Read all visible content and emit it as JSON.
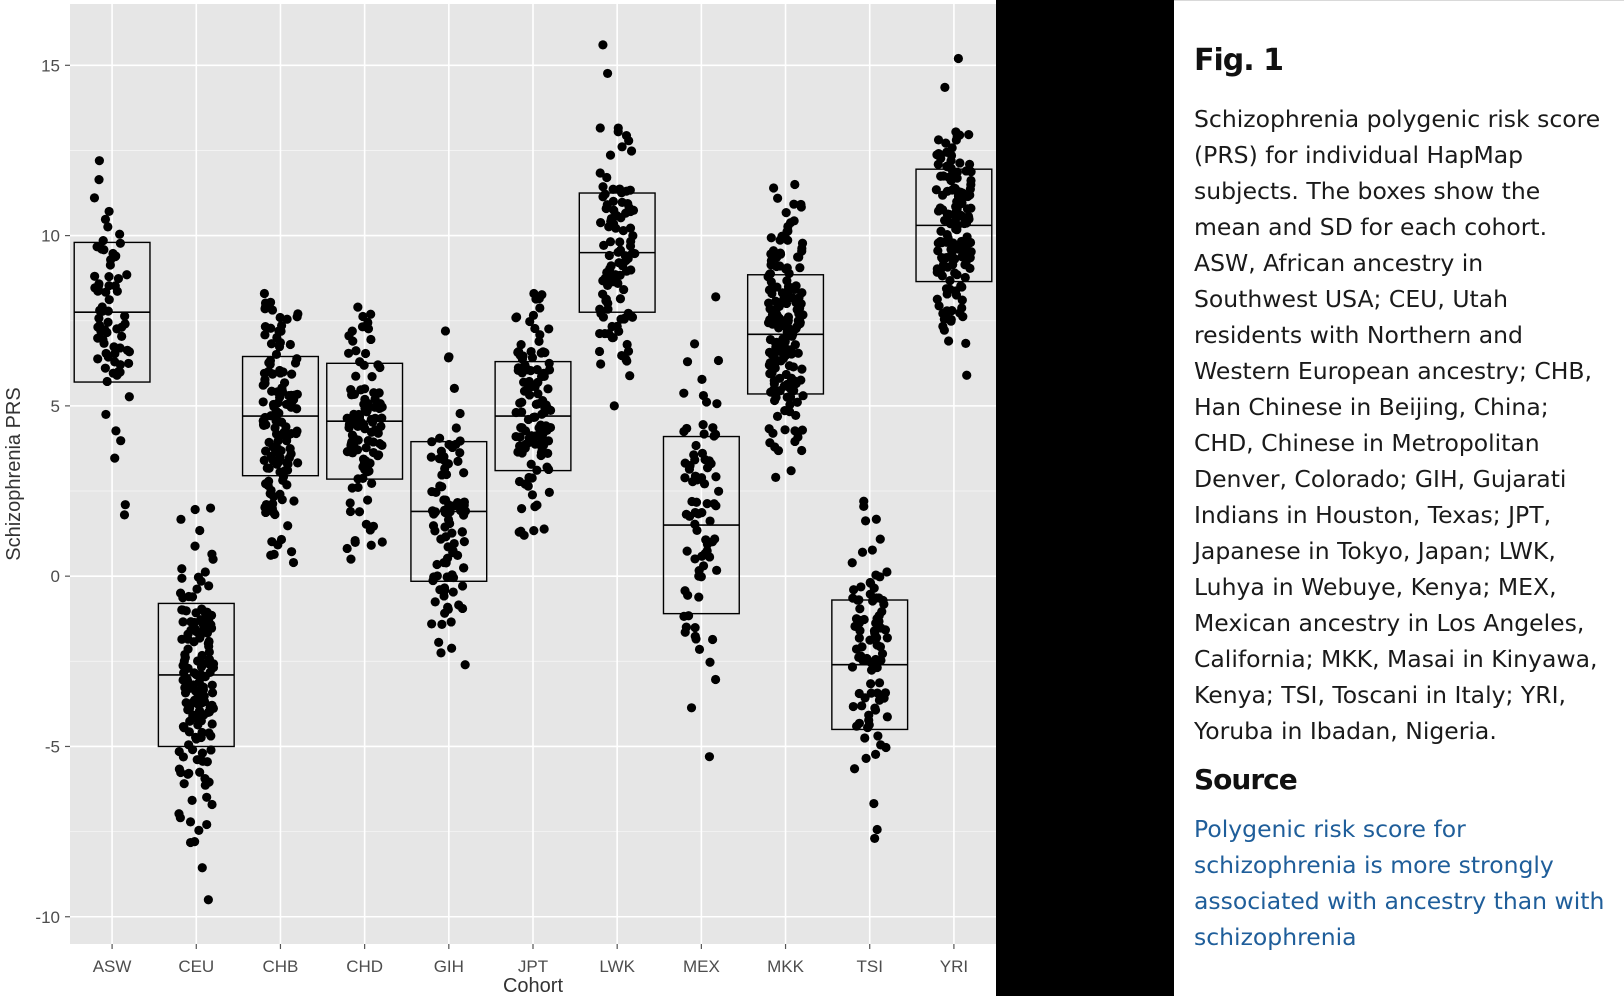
{
  "caption": {
    "title": "Fig. 1",
    "text": "Schizophrenia polygenic risk score (PRS) for individual HapMap subjects. The boxes show the mean and SD for each cohort. ASW, African ancestry in Southwest USA; CEU, Utah residents with Northern and Western European ancestry; CHB, Han Chinese in Beijing, China; CHD, Chinese in Metropolitan Denver, Colorado; GIH, Gujarati Indians in Houston, Texas; JPT, Japanese in Tokyo, Japan; LWK, Luhya in Webuye, Kenya; MEX, Mexican ancestry in Los Angeles, California; MKK, Masai in Kinyawa, Kenya; TSI, Toscani in Italy; YRI, Yoruba in Ibadan, Nigeria.",
    "source_heading": "Source",
    "source_link": "Polygenic risk score for schizophrenia is more strongly associated with ancestry than with schizophrenia"
  },
  "colors": {
    "plot_background": "#e6e6e6",
    "gridline": "#ffffff",
    "point": "#000000",
    "box_outline": "#000000",
    "link": "#1f5e9a"
  },
  "chart_data": {
    "type": "scatter",
    "subtype": "jittered strip plot with mean ± SD boxes",
    "xlabel": "Cohort",
    "ylabel": "Schizophrenia PRS",
    "ylim": [
      -10.8,
      16.8
    ],
    "yticks": [
      -10,
      -5,
      0,
      5,
      10,
      15
    ],
    "ytick_labels": [
      "-10",
      "-5",
      "0",
      "5",
      "10",
      "15"
    ],
    "grid": true,
    "categories": [
      "ASW",
      "CEU",
      "CHB",
      "CHD",
      "GIH",
      "JPT",
      "LWK",
      "MEX",
      "MKK",
      "TSI",
      "YRI"
    ],
    "groups": [
      {
        "cohort": "ASW",
        "mean": 7.75,
        "sd": 2.05,
        "n": 75,
        "min": 1.8,
        "max": 12.2
      },
      {
        "cohort": "CEU",
        "mean": -2.9,
        "sd": 2.1,
        "n": 160,
        "min": -9.5,
        "max": 2.0
      },
      {
        "cohort": "CHB",
        "mean": 4.7,
        "sd": 1.75,
        "n": 135,
        "min": 0.4,
        "max": 8.3
      },
      {
        "cohort": "CHD",
        "mean": 4.55,
        "sd": 1.7,
        "n": 105,
        "min": 0.5,
        "max": 7.9
      },
      {
        "cohort": "GIH",
        "mean": 1.9,
        "sd": 2.05,
        "n": 95,
        "min": -2.6,
        "max": 7.2
      },
      {
        "cohort": "JPT",
        "mean": 4.7,
        "sd": 1.6,
        "n": 115,
        "min": 1.2,
        "max": 8.3
      },
      {
        "cohort": "LWK",
        "mean": 9.5,
        "sd": 1.75,
        "n": 105,
        "min": 5.0,
        "max": 15.6
      },
      {
        "cohort": "MEX",
        "mean": 1.5,
        "sd": 2.6,
        "n": 80,
        "min": -5.3,
        "max": 8.2
      },
      {
        "cohort": "MKK",
        "mean": 7.1,
        "sd": 1.75,
        "n": 180,
        "min": 2.9,
        "max": 11.5
      },
      {
        "cohort": "TSI",
        "mean": -2.6,
        "sd": 1.9,
        "n": 95,
        "min": -7.7,
        "max": 2.2
      },
      {
        "cohort": "YRI",
        "mean": 10.3,
        "sd": 1.65,
        "n": 160,
        "min": 5.9,
        "max": 15.2
      }
    ]
  }
}
